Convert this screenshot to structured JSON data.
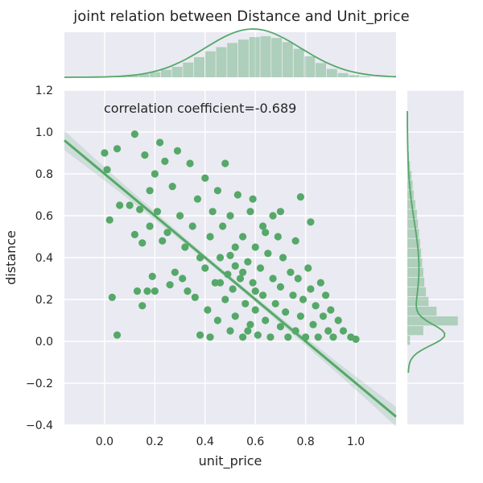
{
  "chart_data": {
    "type": "scatter",
    "title": "joint relation between Distance and Unit_price",
    "xlabel": "unit_price",
    "ylabel": "distance",
    "xlim": [
      -0.16,
      1.16
    ],
    "ylim": [
      -0.4,
      1.2
    ],
    "xticks": [
      "0.0",
      "0.2",
      "0.4",
      "0.6",
      "0.8",
      "1.0"
    ],
    "yticks": [
      "−0.4",
      "−0.2",
      "0.0",
      "0.2",
      "0.4",
      "0.6",
      "0.8",
      "1.0",
      "1.2"
    ],
    "annotation": "correlation coefficient=-0.689",
    "grid": true,
    "color": "#55a868",
    "background": "#eaeaf2",
    "regression": {
      "slope": -1.0,
      "intercept": 0.8
    },
    "points": [
      [
        0.0,
        0.9
      ],
      [
        0.01,
        0.82
      ],
      [
        0.02,
        0.58
      ],
      [
        0.03,
        0.21
      ],
      [
        0.05,
        0.03
      ],
      [
        0.05,
        0.92
      ],
      [
        0.06,
        0.65
      ],
      [
        0.1,
        0.65
      ],
      [
        0.12,
        0.51
      ],
      [
        0.12,
        0.99
      ],
      [
        0.13,
        0.24
      ],
      [
        0.14,
        0.63
      ],
      [
        0.15,
        0.47
      ],
      [
        0.15,
        0.17
      ],
      [
        0.16,
        0.89
      ],
      [
        0.17,
        0.24
      ],
      [
        0.18,
        0.72
      ],
      [
        0.18,
        0.55
      ],
      [
        0.19,
        0.31
      ],
      [
        0.2,
        0.8
      ],
      [
        0.2,
        0.24
      ],
      [
        0.21,
        0.62
      ],
      [
        0.22,
        0.95
      ],
      [
        0.23,
        0.48
      ],
      [
        0.24,
        0.86
      ],
      [
        0.25,
        0.52
      ],
      [
        0.26,
        0.27
      ],
      [
        0.27,
        0.74
      ],
      [
        0.28,
        0.33
      ],
      [
        0.29,
        0.91
      ],
      [
        0.3,
        0.6
      ],
      [
        0.31,
        0.3
      ],
      [
        0.32,
        0.45
      ],
      [
        0.33,
        0.24
      ],
      [
        0.34,
        0.85
      ],
      [
        0.35,
        0.55
      ],
      [
        0.36,
        0.21
      ],
      [
        0.37,
        0.68
      ],
      [
        0.38,
        0.4
      ],
      [
        0.38,
        0.03
      ],
      [
        0.4,
        0.35
      ],
      [
        0.4,
        0.78
      ],
      [
        0.41,
        0.15
      ],
      [
        0.42,
        0.5
      ],
      [
        0.42,
        0.02
      ],
      [
        0.43,
        0.62
      ],
      [
        0.44,
        0.28
      ],
      [
        0.45,
        0.72
      ],
      [
        0.45,
        0.1
      ],
      [
        0.46,
        0.4
      ],
      [
        0.47,
        0.55
      ],
      [
        0.48,
        0.2
      ],
      [
        0.48,
        0.85
      ],
      [
        0.49,
        0.32
      ],
      [
        0.5,
        0.05
      ],
      [
        0.5,
        0.6
      ],
      [
        0.51,
        0.25
      ],
      [
        0.52,
        0.45
      ],
      [
        0.52,
        0.12
      ],
      [
        0.53,
        0.7
      ],
      [
        0.54,
        0.3
      ],
      [
        0.55,
        0.02
      ],
      [
        0.55,
        0.5
      ],
      [
        0.56,
        0.18
      ],
      [
        0.57,
        0.38
      ],
      [
        0.58,
        0.62
      ],
      [
        0.58,
        0.08
      ],
      [
        0.59,
        0.28
      ],
      [
        0.6,
        0.45
      ],
      [
        0.6,
        0.15
      ],
      [
        0.61,
        0.03
      ],
      [
        0.62,
        0.35
      ],
      [
        0.63,
        0.55
      ],
      [
        0.63,
        0.22
      ],
      [
        0.64,
        0.1
      ],
      [
        0.65,
        0.42
      ],
      [
        0.66,
        0.02
      ],
      [
        0.67,
        0.3
      ],
      [
        0.67,
        0.6
      ],
      [
        0.68,
        0.18
      ],
      [
        0.69,
        0.5
      ],
      [
        0.7,
        0.07
      ],
      [
        0.7,
        0.26
      ],
      [
        0.71,
        0.4
      ],
      [
        0.72,
        0.14
      ],
      [
        0.73,
        0.02
      ],
      [
        0.74,
        0.33
      ],
      [
        0.75,
        0.22
      ],
      [
        0.76,
        0.48
      ],
      [
        0.76,
        0.05
      ],
      [
        0.77,
        0.3
      ],
      [
        0.78,
        0.12
      ],
      [
        0.79,
        0.2
      ],
      [
        0.8,
        0.02
      ],
      [
        0.81,
        0.35
      ],
      [
        0.82,
        0.25
      ],
      [
        0.83,
        0.08
      ],
      [
        0.84,
        0.17
      ],
      [
        0.85,
        0.02
      ],
      [
        0.86,
        0.28
      ],
      [
        0.87,
        0.12
      ],
      [
        0.88,
        0.22
      ],
      [
        0.89,
        0.05
      ],
      [
        0.9,
        0.15
      ],
      [
        0.91,
        0.02
      ],
      [
        0.93,
        0.1
      ],
      [
        0.95,
        0.05
      ],
      [
        0.98,
        0.02
      ],
      [
        1.0,
        0.01
      ],
      [
        0.59,
        0.68
      ],
      [
        0.64,
        0.52
      ],
      [
        0.7,
        0.62
      ],
      [
        0.78,
        0.69
      ],
      [
        0.82,
        0.57
      ],
      [
        0.6,
        0.24
      ],
      [
        0.55,
        0.33
      ],
      [
        0.5,
        0.41
      ],
      [
        0.46,
        0.28
      ],
      [
        0.52,
        0.36
      ],
      [
        0.57,
        0.05
      ]
    ],
    "top_histogram": [
      0.01,
      0.02,
      0.04,
      0.05,
      0.08,
      0.12,
      0.18,
      0.25,
      0.35,
      0.48,
      0.62,
      0.72,
      0.82,
      0.9,
      0.96,
      0.98,
      0.94,
      0.84,
      0.68,
      0.5,
      0.34,
      0.2,
      0.1,
      0.05,
      0.02
    ],
    "right_histogram": [
      0.01,
      0.02,
      0.03,
      0.05,
      0.08,
      0.1,
      0.12,
      0.15,
      0.18,
      0.2,
      0.22,
      0.24,
      0.26,
      0.28,
      0.3,
      0.32,
      0.35,
      0.4,
      0.55,
      0.95,
      0.3,
      0.05
    ]
  }
}
